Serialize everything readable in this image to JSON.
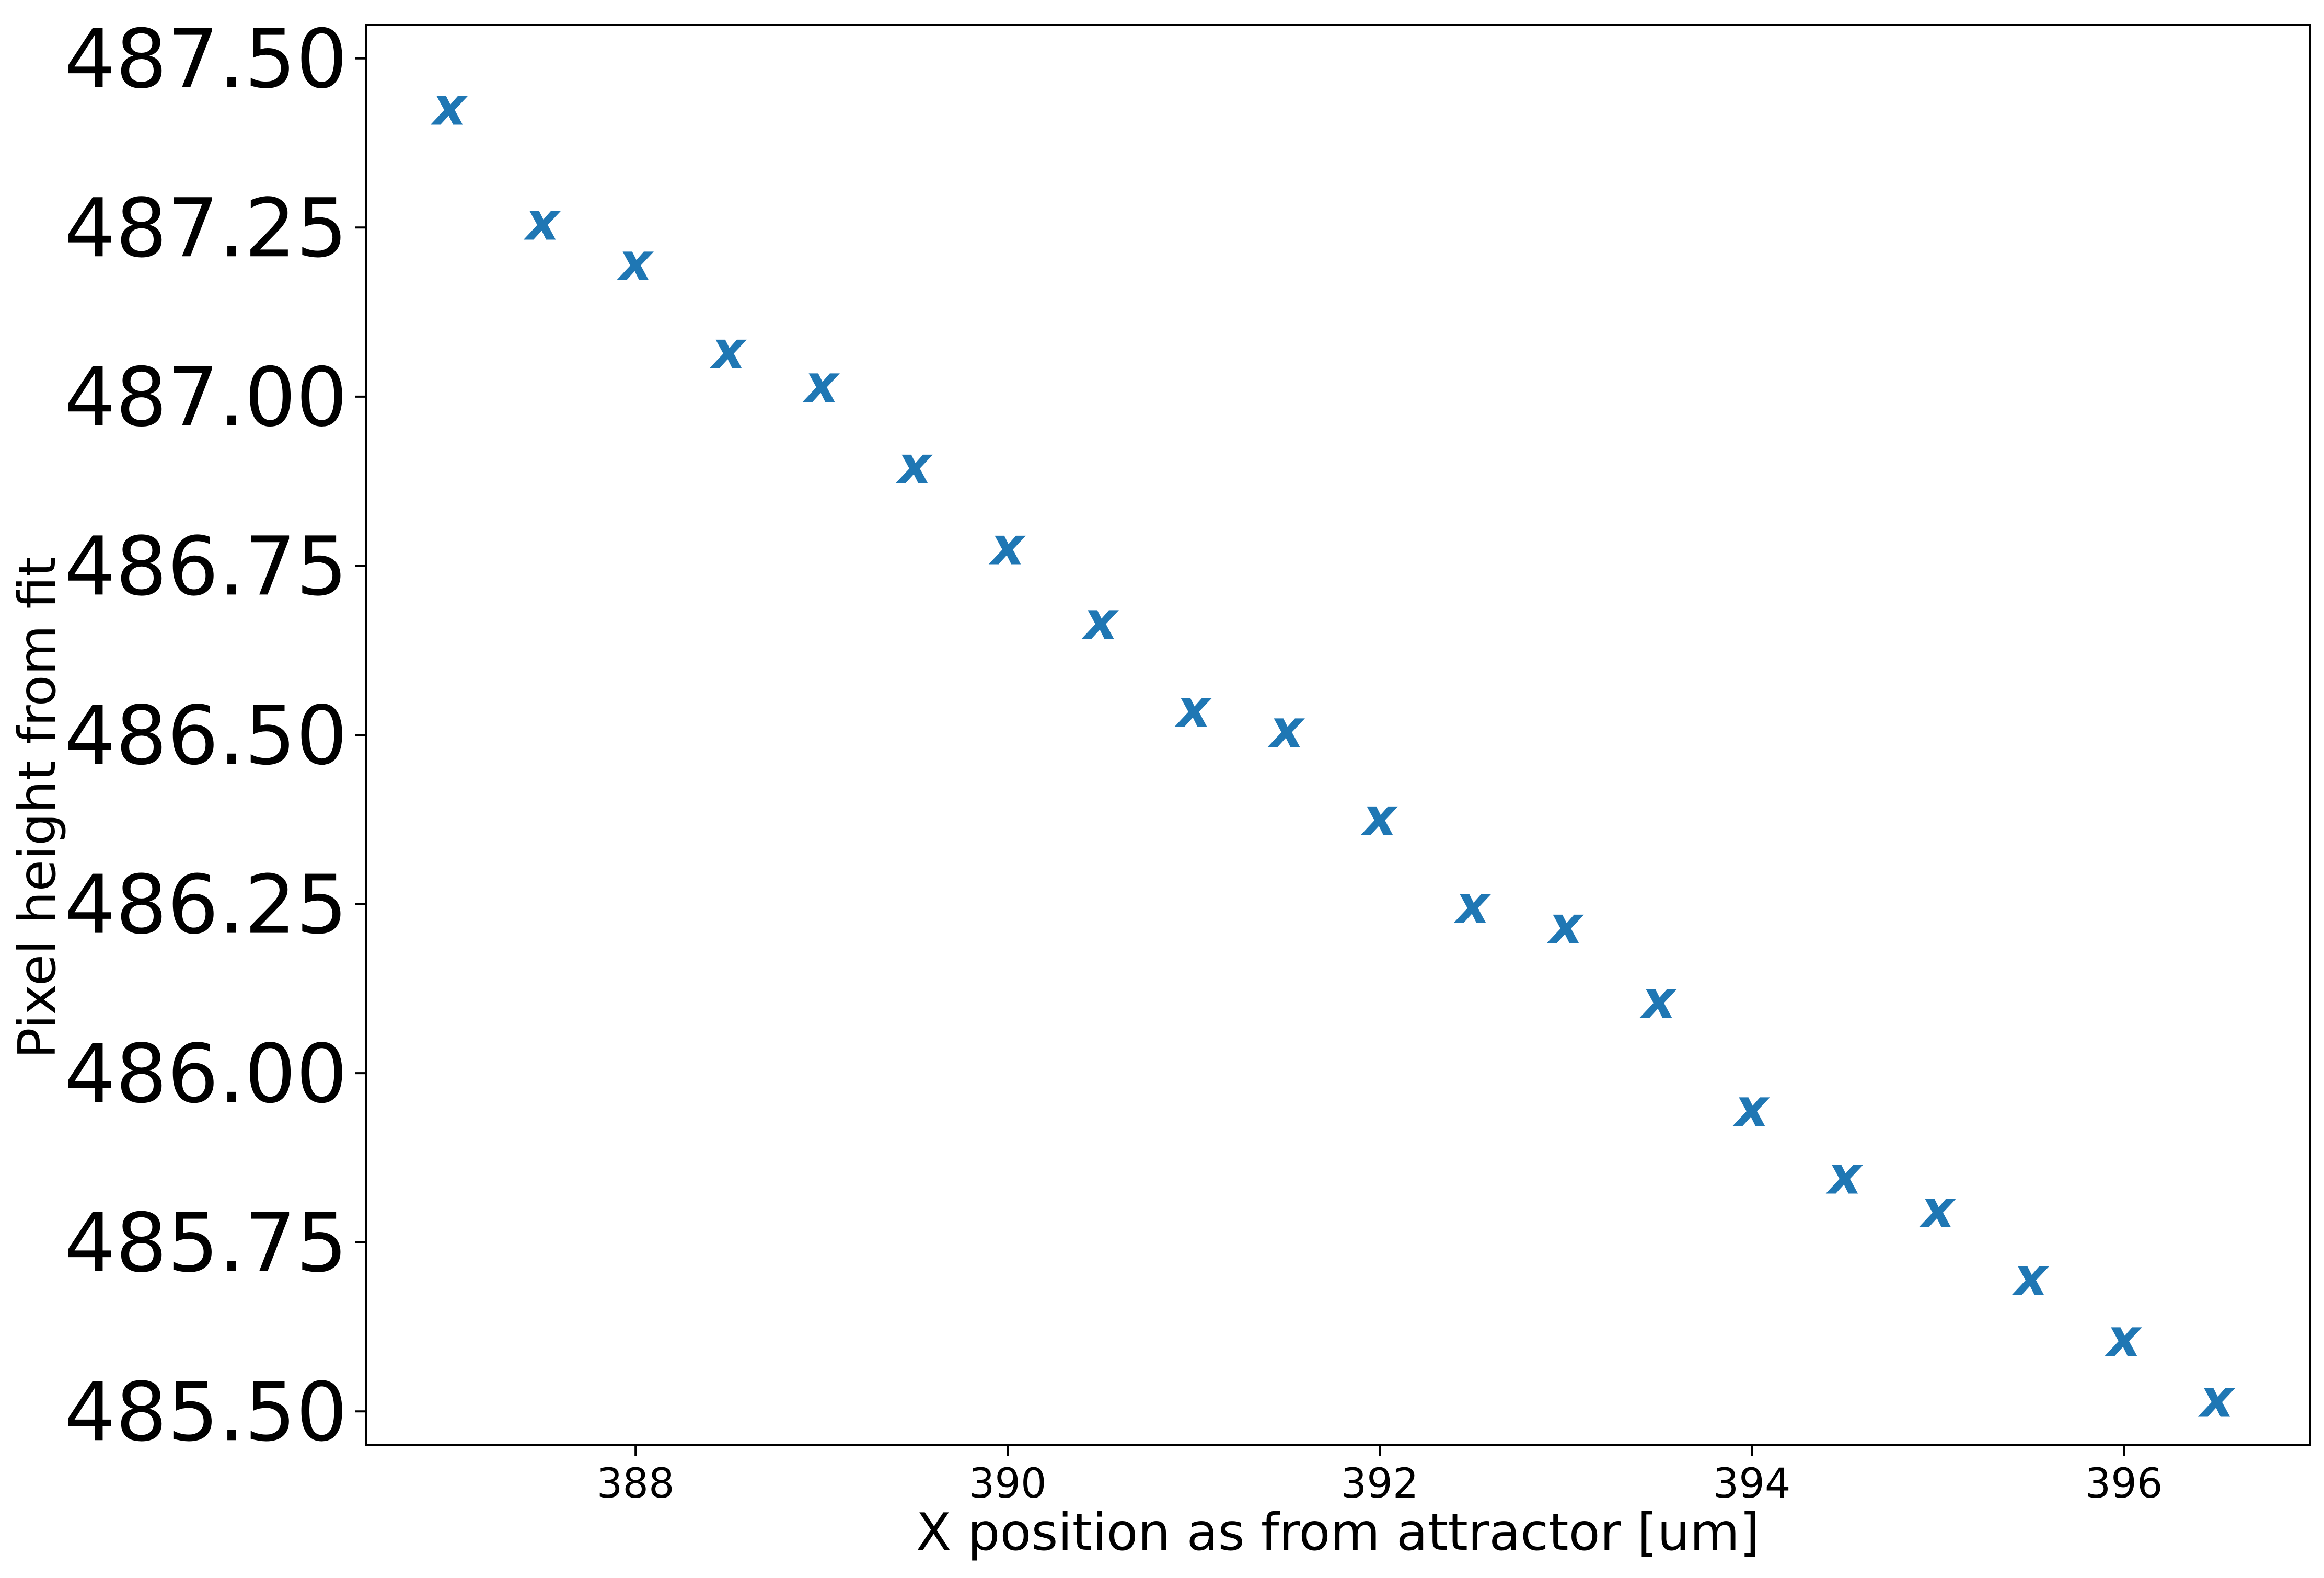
{
  "chart_data": {
    "type": "scatter",
    "title": "",
    "xlabel": "X position as from attractor [um]",
    "ylabel": "Pixel height from fit",
    "xlim": [
      386.55,
      397.0
    ],
    "ylim": [
      485.45,
      487.55
    ],
    "x_ticks": [
      388,
      390,
      392,
      394,
      396
    ],
    "x_tick_labels": [
      "388",
      "390",
      "392",
      "394",
      "396"
    ],
    "y_ticks": [
      485.5,
      485.75,
      486.0,
      486.25,
      486.5,
      486.75,
      487.0,
      487.25,
      487.5
    ],
    "y_tick_labels": [
      "485.50",
      "485.75",
      "486.00",
      "486.25",
      "486.50",
      "486.75",
      "487.00",
      "487.25",
      "487.50"
    ],
    "grid": false,
    "marker_symbol": "x",
    "marker_color": "#1f77b4",
    "series": [
      {
        "x": [
          387.0,
          387.5,
          388.0,
          388.5,
          389.0,
          389.5,
          390.0,
          390.5,
          391.0,
          391.5,
          392.0,
          392.5,
          393.0,
          393.5,
          394.0,
          394.5,
          395.0,
          395.5,
          396.0,
          396.5
        ],
        "y": [
          487.43,
          487.26,
          487.2,
          487.07,
          487.02,
          486.9,
          486.78,
          486.67,
          486.54,
          486.51,
          486.38,
          486.25,
          486.22,
          486.11,
          485.95,
          485.85,
          485.8,
          485.7,
          485.61,
          485.52
        ]
      }
    ]
  }
}
